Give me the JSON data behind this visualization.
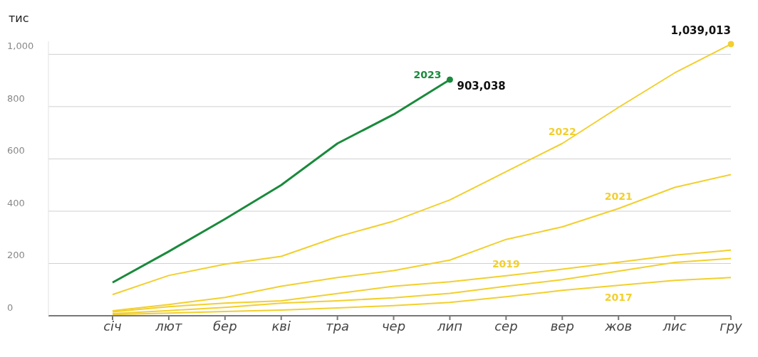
{
  "chart_data": {
    "type": "line",
    "ylabel": "тис",
    "categories": [
      "січ",
      "лют",
      "бер",
      "кві",
      "тра",
      "чер",
      "лип",
      "сер",
      "вер",
      "жов",
      "лис",
      "гру"
    ],
    "series": [
      {
        "name": "2017",
        "color": "#f2cf2e",
        "values": [
          5,
          10,
          16,
          22,
          30,
          39,
          51,
          73,
          97,
          116,
          135,
          146
        ]
      },
      {
        "color": "#f2cf2e",
        "values": [
          8,
          20,
          32,
          48,
          57,
          69,
          86,
          113,
          138,
          171,
          204,
          219
        ]
      },
      {
        "name": "2019",
        "color": "#f2cf2e",
        "values": [
          15,
          35,
          48,
          57,
          85,
          113,
          130,
          153,
          178,
          205,
          232,
          251
        ]
      },
      {
        "name": "2021",
        "color": "#f2cf2e",
        "values": [
          19,
          43,
          70,
          113,
          146,
          173,
          213,
          292,
          340,
          410,
          491,
          540
        ]
      },
      {
        "name": "2022",
        "color": "#f2cf2e",
        "values": [
          81,
          154,
          197,
          227,
          302,
          362,
          443,
          551,
          659,
          797,
          929,
          1039
        ]
      },
      {
        "name": "2023",
        "color": "#1a8a3c",
        "values": [
          127,
          246,
          370,
          500,
          659,
          770,
          903,
          null,
          null,
          null,
          null,
          null
        ]
      }
    ],
    "annotations": [
      {
        "text": "903,038",
        "x": "лип",
        "y": 903.038
      },
      {
        "text": "1,039,013",
        "x": "гру",
        "y": 1039.013
      }
    ],
    "ylim": [
      0,
      1050
    ],
    "yticks": [
      0,
      200,
      400,
      600,
      800,
      {
        "value": 1000,
        "label": "1,000"
      }
    ],
    "grid": "y",
    "marker": "none",
    "line_style": "solid"
  }
}
